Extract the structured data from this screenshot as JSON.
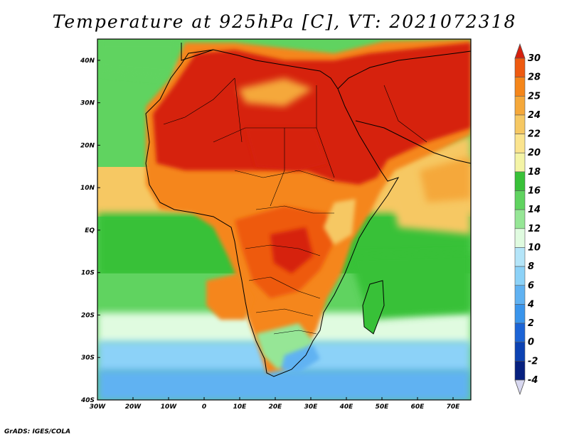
{
  "title": "Temperature at 925hPa [C], VT: 2021072318",
  "credit": "GrADS: IGES/COLA",
  "map": {
    "variable": "Temperature at 925hPa",
    "units": "C",
    "valid_time": "2021072318",
    "lon_range": [
      -30,
      75
    ],
    "lat_range": [
      -40,
      45
    ],
    "lon_ticks": [
      {
        "value": -30,
        "label": "30W"
      },
      {
        "value": -20,
        "label": "20W"
      },
      {
        "value": -10,
        "label": "10W"
      },
      {
        "value": 0,
        "label": "0"
      },
      {
        "value": 10,
        "label": "10E"
      },
      {
        "value": 20,
        "label": "20E"
      },
      {
        "value": 30,
        "label": "30E"
      },
      {
        "value": 40,
        "label": "40E"
      },
      {
        "value": 50,
        "label": "50E"
      },
      {
        "value": 60,
        "label": "60E"
      },
      {
        "value": 70,
        "label": "70E"
      }
    ],
    "lat_ticks": [
      {
        "value": 40,
        "label": "40N"
      },
      {
        "value": 30,
        "label": "30N"
      },
      {
        "value": 20,
        "label": "20N"
      },
      {
        "value": 10,
        "label": "10N"
      },
      {
        "value": 0,
        "label": "EQ"
      },
      {
        "value": -10,
        "label": "10S"
      },
      {
        "value": -20,
        "label": "20S"
      },
      {
        "value": -30,
        "label": "30S"
      },
      {
        "value": -40,
        "label": "40S"
      }
    ]
  },
  "colorbar": {
    "labels": [
      "30",
      "28",
      "25",
      "24",
      "22",
      "20",
      "18",
      "16",
      "14",
      "12",
      "10",
      "8",
      "6",
      "4",
      "2",
      "0",
      "-2",
      "-4"
    ],
    "colors": [
      "#d6200e",
      "#ee5a10",
      "#f5861a",
      "#f5a83a",
      "#f6c863",
      "#fbe48e",
      "#f4f4a6",
      "#38c138",
      "#60d360",
      "#96e696",
      "#e0fbe0",
      "#b4e5f9",
      "#8cd2f8",
      "#60b2f2",
      "#3a95ec",
      "#1c64d6",
      "#0c42b3",
      "#06207f",
      "#d8d8f0"
    ]
  }
}
